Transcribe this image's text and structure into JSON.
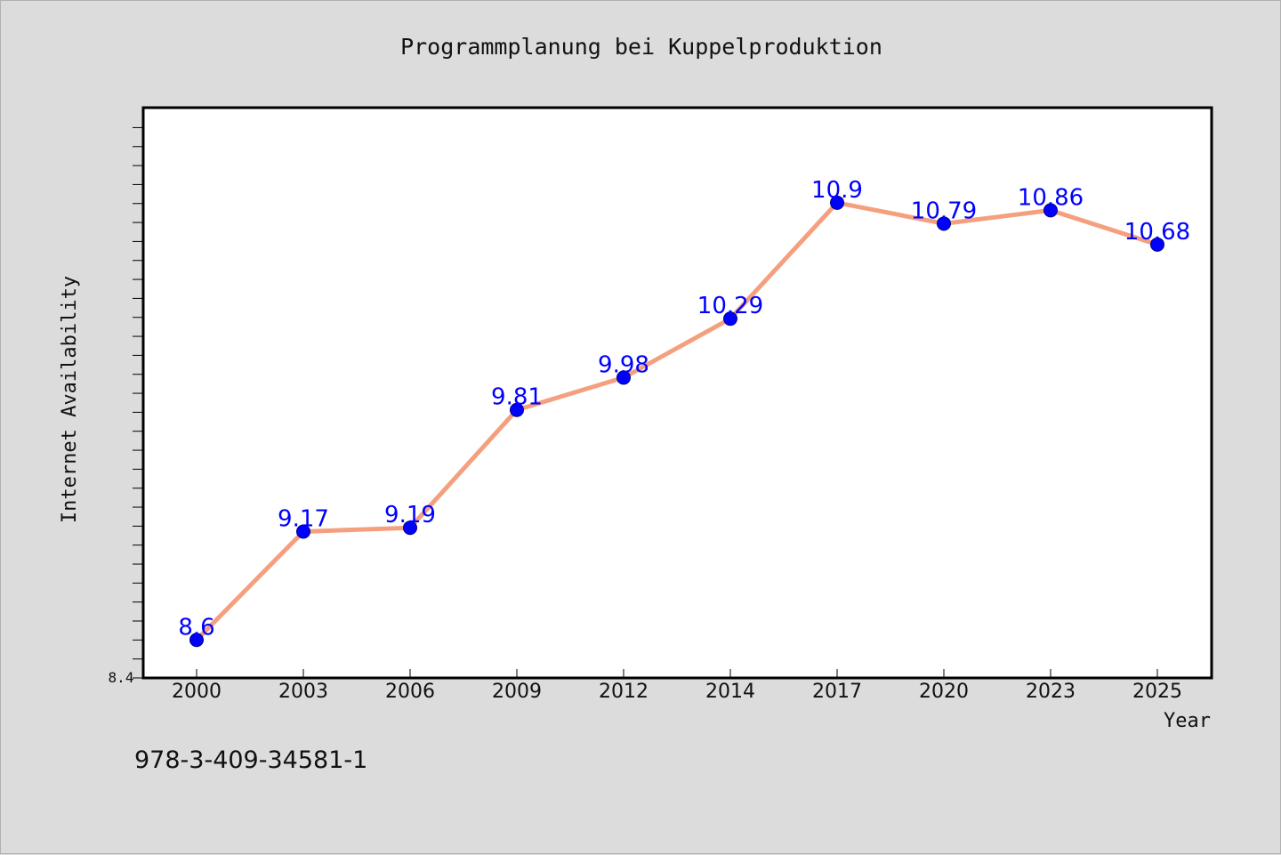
{
  "chart_data": {
    "type": "line",
    "title": "Programmplanung bei Kuppelproduktion",
    "xlabel": "Year",
    "ylabel": "Internet Availability",
    "categories": [
      "2000",
      "2003",
      "2006",
      "2009",
      "2012",
      "2014",
      "2017",
      "2020",
      "2023",
      "2025"
    ],
    "series": [
      {
        "values": [
          8.6,
          9.17,
          9.19,
          9.81,
          9.98,
          10.29,
          10.9,
          10.79,
          10.86,
          10.68
        ],
        "line_color": "#f4a07f",
        "marker_color": "#0000ff"
      }
    ],
    "data_labels": [
      "8.6",
      "9.17",
      "9.19",
      "9.81",
      "9.98",
      "10.29",
      "10.9",
      "10.79",
      "10.86",
      "10.68"
    ],
    "ylim": [
      8.4,
      11.4
    ],
    "y_min_label": "8.4",
    "grid": false,
    "background": "#dcdcdc",
    "plot_background": "#ffffff"
  },
  "footer": {
    "isbn": "978-3-409-34581-1"
  }
}
